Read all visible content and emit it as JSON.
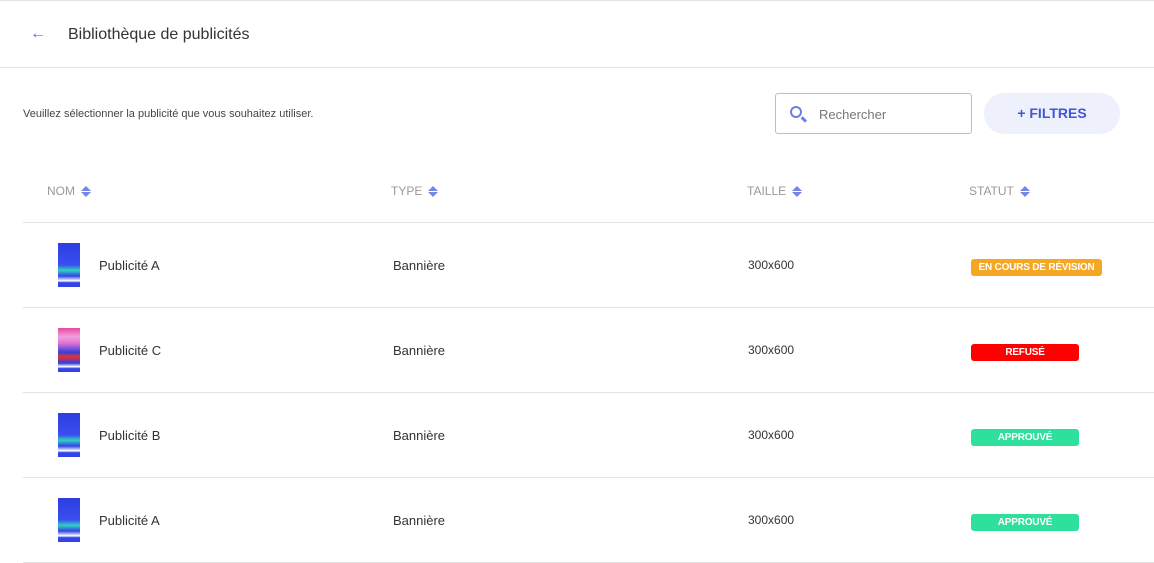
{
  "header": {
    "title": "Bibliothèque de publicités",
    "back_icon": "arrow-left-icon"
  },
  "intro": "Veuillez sélectionner la publicité que vous souhaitez utiliser.",
  "search": {
    "placeholder": "Rechercher",
    "value": ""
  },
  "filters_label": "+ FILTRES",
  "columns": [
    "NOM",
    "TYPE",
    "TAILLE",
    "STATUT"
  ],
  "rows": [
    {
      "name": "Publicité A",
      "type": "Bannière",
      "size": "300x600",
      "status": "EN COURS DE RÉVISION",
      "status_color": "#f5a623"
    },
    {
      "name": "Publicité C",
      "type": "Bannière",
      "size": "300x600",
      "status": "REFUSÉ",
      "status_color": "#ff0000"
    },
    {
      "name": "Publicité B",
      "type": "Bannière",
      "size": "300x600",
      "status": "APPROUVÉ",
      "status_color": "#2ee09c"
    },
    {
      "name": "Publicité A",
      "type": "Bannière",
      "size": "300x600",
      "status": "APPROUVÉ",
      "status_color": "#2ee09c"
    }
  ],
  "colors": {
    "accent": "#4257d8",
    "filter_bg": "#eef0fb"
  }
}
